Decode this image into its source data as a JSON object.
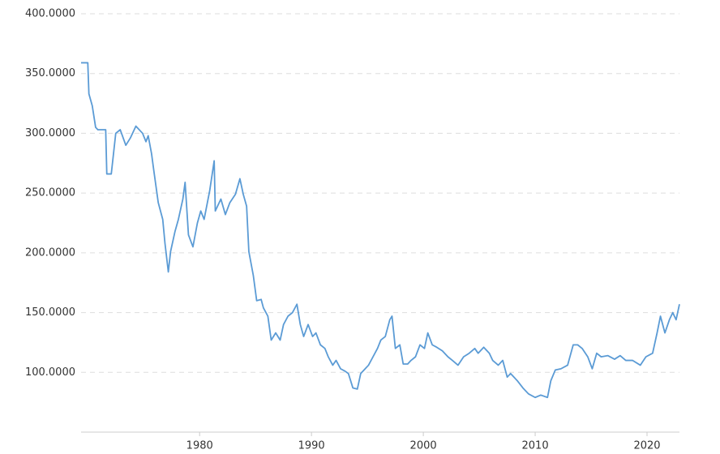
{
  "chart_data": {
    "type": "line",
    "color": "#5b9bd5",
    "grid": true,
    "xlim": [
      1969.4,
      2022.9
    ],
    "xticks": [
      1980,
      1990,
      2000,
      2010,
      2020
    ],
    "ylim": [
      50,
      400
    ],
    "yticks": [
      {
        "value": 100,
        "label": "100.0000"
      },
      {
        "value": 150,
        "label": "150.0000"
      },
      {
        "value": 200,
        "label": "200.0000"
      },
      {
        "value": 250,
        "label": "250.0000"
      },
      {
        "value": 300,
        "label": "300.0000"
      },
      {
        "value": 350,
        "label": "350.0000"
      },
      {
        "value": 400,
        "label": "400.0000"
      }
    ],
    "x": [
      1969.4,
      1970.0,
      1970.1,
      1970.4,
      1970.7,
      1970.9,
      1971.6,
      1971.7,
      1972.1,
      1972.3,
      1972.5,
      1972.9,
      1973.4,
      1973.8,
      1974.3,
      1974.9,
      1975.2,
      1975.4,
      1975.7,
      1975.9,
      1976.3,
      1976.7,
      1976.9,
      1977.2,
      1977.4,
      1977.8,
      1978.1,
      1978.5,
      1978.7,
      1979.0,
      1979.4,
      1979.8,
      1980.1,
      1980.4,
      1980.9,
      1981.3,
      1981.4,
      1981.9,
      1982.3,
      1982.7,
      1983.2,
      1983.6,
      1983.9,
      1984.2,
      1984.4,
      1984.8,
      1985.1,
      1985.5,
      1985.7,
      1986.1,
      1986.4,
      1986.8,
      1987.2,
      1987.5,
      1987.9,
      1988.3,
      1988.7,
      1989.0,
      1989.3,
      1989.7,
      1990.1,
      1990.4,
      1990.8,
      1991.2,
      1991.5,
      1991.9,
      1992.2,
      1992.6,
      1993.0,
      1993.3,
      1993.7,
      1994.1,
      1994.4,
      1994.8,
      1995.1,
      1995.5,
      1995.9,
      1996.2,
      1996.6,
      1997.0,
      1997.2,
      1997.5,
      1997.9,
      1998.2,
      1998.6,
      1998.9,
      1999.3,
      1999.7,
      2000.1,
      2000.4,
      2000.8,
      2001.2,
      2001.7,
      2002.2,
      2002.6,
      2003.1,
      2003.6,
      2004.1,
      2004.6,
      2004.9,
      2005.4,
      2005.9,
      2006.2,
      2006.7,
      2007.1,
      2007.5,
      2007.8,
      2008.4,
      2008.9,
      2009.4,
      2010.0,
      2010.5,
      2011.1,
      2011.4,
      2011.8,
      2012.3,
      2012.9,
      2013.4,
      2013.8,
      2014.2,
      2014.7,
      2015.1,
      2015.5,
      2015.9,
      2016.5,
      2017.1,
      2017.6,
      2018.1,
      2018.7,
      2019.4,
      2019.9,
      2020.5,
      2020.9,
      2021.2,
      2021.6,
      2022.0,
      2022.3,
      2022.6,
      2022.9
    ],
    "values": [
      359,
      359,
      333,
      323,
      305,
      303,
      303,
      266,
      266,
      283,
      300,
      303,
      290,
      296,
      306,
      300,
      293,
      298,
      283,
      269,
      242,
      228,
      208,
      184,
      201,
      218,
      228,
      245,
      259,
      215,
      205,
      225,
      235,
      228,
      252,
      277,
      235,
      245,
      232,
      242,
      249,
      262,
      249,
      239,
      201,
      181,
      160,
      161,
      154,
      147,
      127,
      133,
      127,
      140,
      147,
      150,
      157,
      140,
      130,
      140,
      130,
      133,
      123,
      120,
      113,
      106,
      110,
      103,
      101,
      99,
      87,
      86,
      99,
      103,
      106,
      113,
      120,
      127,
      130,
      144,
      147,
      120,
      123,
      107,
      107,
      110,
      113,
      123,
      120,
      133,
      123,
      121,
      118,
      113,
      110,
      106,
      113,
      116,
      120,
      116,
      121,
      116,
      110,
      106,
      110,
      96,
      99,
      93,
      87,
      82,
      79,
      81,
      79,
      93,
      102,
      103,
      106,
      123,
      123,
      120,
      113,
      103,
      116,
      113,
      114,
      111,
      114,
      110,
      110,
      106,
      113,
      116,
      133,
      147,
      133,
      144,
      150,
      144,
      157
    ]
  }
}
